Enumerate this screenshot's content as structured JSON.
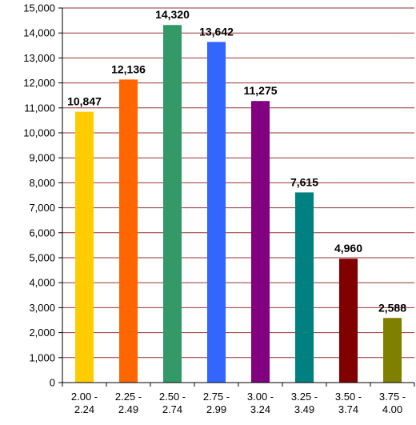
{
  "chart_data": {
    "type": "bar",
    "categories": [
      [
        "2.00 -",
        "2.24"
      ],
      [
        "2.25 -",
        "2.49"
      ],
      [
        "2.50 -",
        "2.74"
      ],
      [
        "2.75 -",
        "2.99"
      ],
      [
        "3.00 -",
        "3.24"
      ],
      [
        "3.25 -",
        "3.49"
      ],
      [
        "3.50 -",
        "3.74"
      ],
      [
        "3.75 -",
        "4.00"
      ]
    ],
    "values": [
      10847,
      12136,
      14320,
      13642,
      11275,
      7615,
      4960,
      2588
    ],
    "data_labels": [
      "10,847",
      "12,136",
      "14,320",
      "13,642",
      "11,275",
      "7,615",
      "4,960",
      "2,588"
    ],
    "colors": [
      "#FFCC00",
      "#FF6600",
      "#339966",
      "#3366FF",
      "#800080",
      "#008080",
      "#800000",
      "#808000"
    ],
    "gridline_color": "#993333",
    "ylim": [
      0,
      15000
    ],
    "y_ticks": [
      0,
      1000,
      2000,
      3000,
      4000,
      5000,
      6000,
      7000,
      8000,
      9000,
      10000,
      11000,
      12000,
      13000,
      14000,
      15000
    ],
    "y_tick_labels": [
      "0",
      "1,000",
      "2,000",
      "3,000",
      "4,000",
      "5,000",
      "6,000",
      "7,000",
      "8,000",
      "9,000",
      "10,000",
      "11,000",
      "12,000",
      "13,000",
      "14,000",
      "15,000"
    ],
    "grid": true,
    "title": "",
    "xlabel": "",
    "ylabel": ""
  }
}
